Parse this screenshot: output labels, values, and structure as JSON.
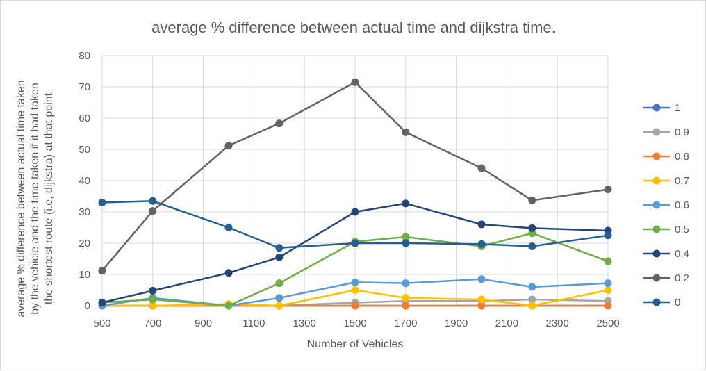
{
  "chart_data": {
    "type": "line",
    "title": "average % difference between actual time and dijkstra time.",
    "xlabel": "Number of Vehicles",
    "ylabel": "average % difference  between actual time taken by the vehicle and the time taken if it had taken the shortest route (i.e, dijkstra) at that point",
    "ylabel_lines": [
      "average % difference  between actual time taken",
      "by the vehicle and the time taken if it had taken",
      "the shortest route (i.e, dijkstra) at that point"
    ],
    "xlim": [
      500,
      2500
    ],
    "ylim": [
      0,
      80
    ],
    "x_ticks": [
      500,
      700,
      900,
      1100,
      1300,
      1500,
      1700,
      1900,
      2100,
      2300,
      2500
    ],
    "y_ticks": [
      0,
      10,
      20,
      30,
      40,
      50,
      60,
      70,
      80
    ],
    "grid": true,
    "legend_position": "right",
    "x": [
      500,
      700,
      1000,
      1200,
      1500,
      1700,
      2000,
      2200,
      2500
    ],
    "series": [
      {
        "name": "1",
        "color": "#4472c4",
        "values": [
          0,
          0,
          0,
          0,
          0,
          0,
          0,
          0,
          0
        ]
      },
      {
        "name": "0.9",
        "color": "#a5a5a5",
        "values": [
          0,
          0,
          0,
          0,
          1,
          1.5,
          1.5,
          2,
          1.5
        ]
      },
      {
        "name": "0.8",
        "color": "#ed7d31",
        "values": [
          0,
          0,
          0,
          0,
          0,
          0,
          0,
          0,
          0
        ]
      },
      {
        "name": "0.7",
        "color": "#ffc000",
        "values": [
          0,
          0,
          0.5,
          0,
          5,
          2.5,
          2,
          0,
          5
        ]
      },
      {
        "name": "0.6",
        "color": "#5b9bd5",
        "values": [
          0,
          2.5,
          0,
          2.5,
          7.5,
          7.2,
          8.5,
          6,
          7.2
        ]
      },
      {
        "name": "0.5",
        "color": "#70ad47",
        "values": [
          1,
          2,
          0,
          7.2,
          20.5,
          22,
          19,
          23.2,
          14.2
        ]
      },
      {
        "name": "0.4",
        "color": "#264478",
        "values": [
          1,
          4.8,
          10.5,
          15.5,
          30,
          32.7,
          26,
          24.8,
          24
        ]
      },
      {
        "name": "0.2",
        "color": "#636363",
        "values": [
          11.2,
          30.3,
          51.2,
          58.3,
          71.5,
          55.5,
          44,
          33.7,
          37.2
        ]
      },
      {
        "name": "0",
        "color": "#255e91",
        "values": [
          33,
          33.5,
          25,
          18.5,
          20,
          20,
          19.7,
          19,
          22.5
        ]
      }
    ]
  }
}
